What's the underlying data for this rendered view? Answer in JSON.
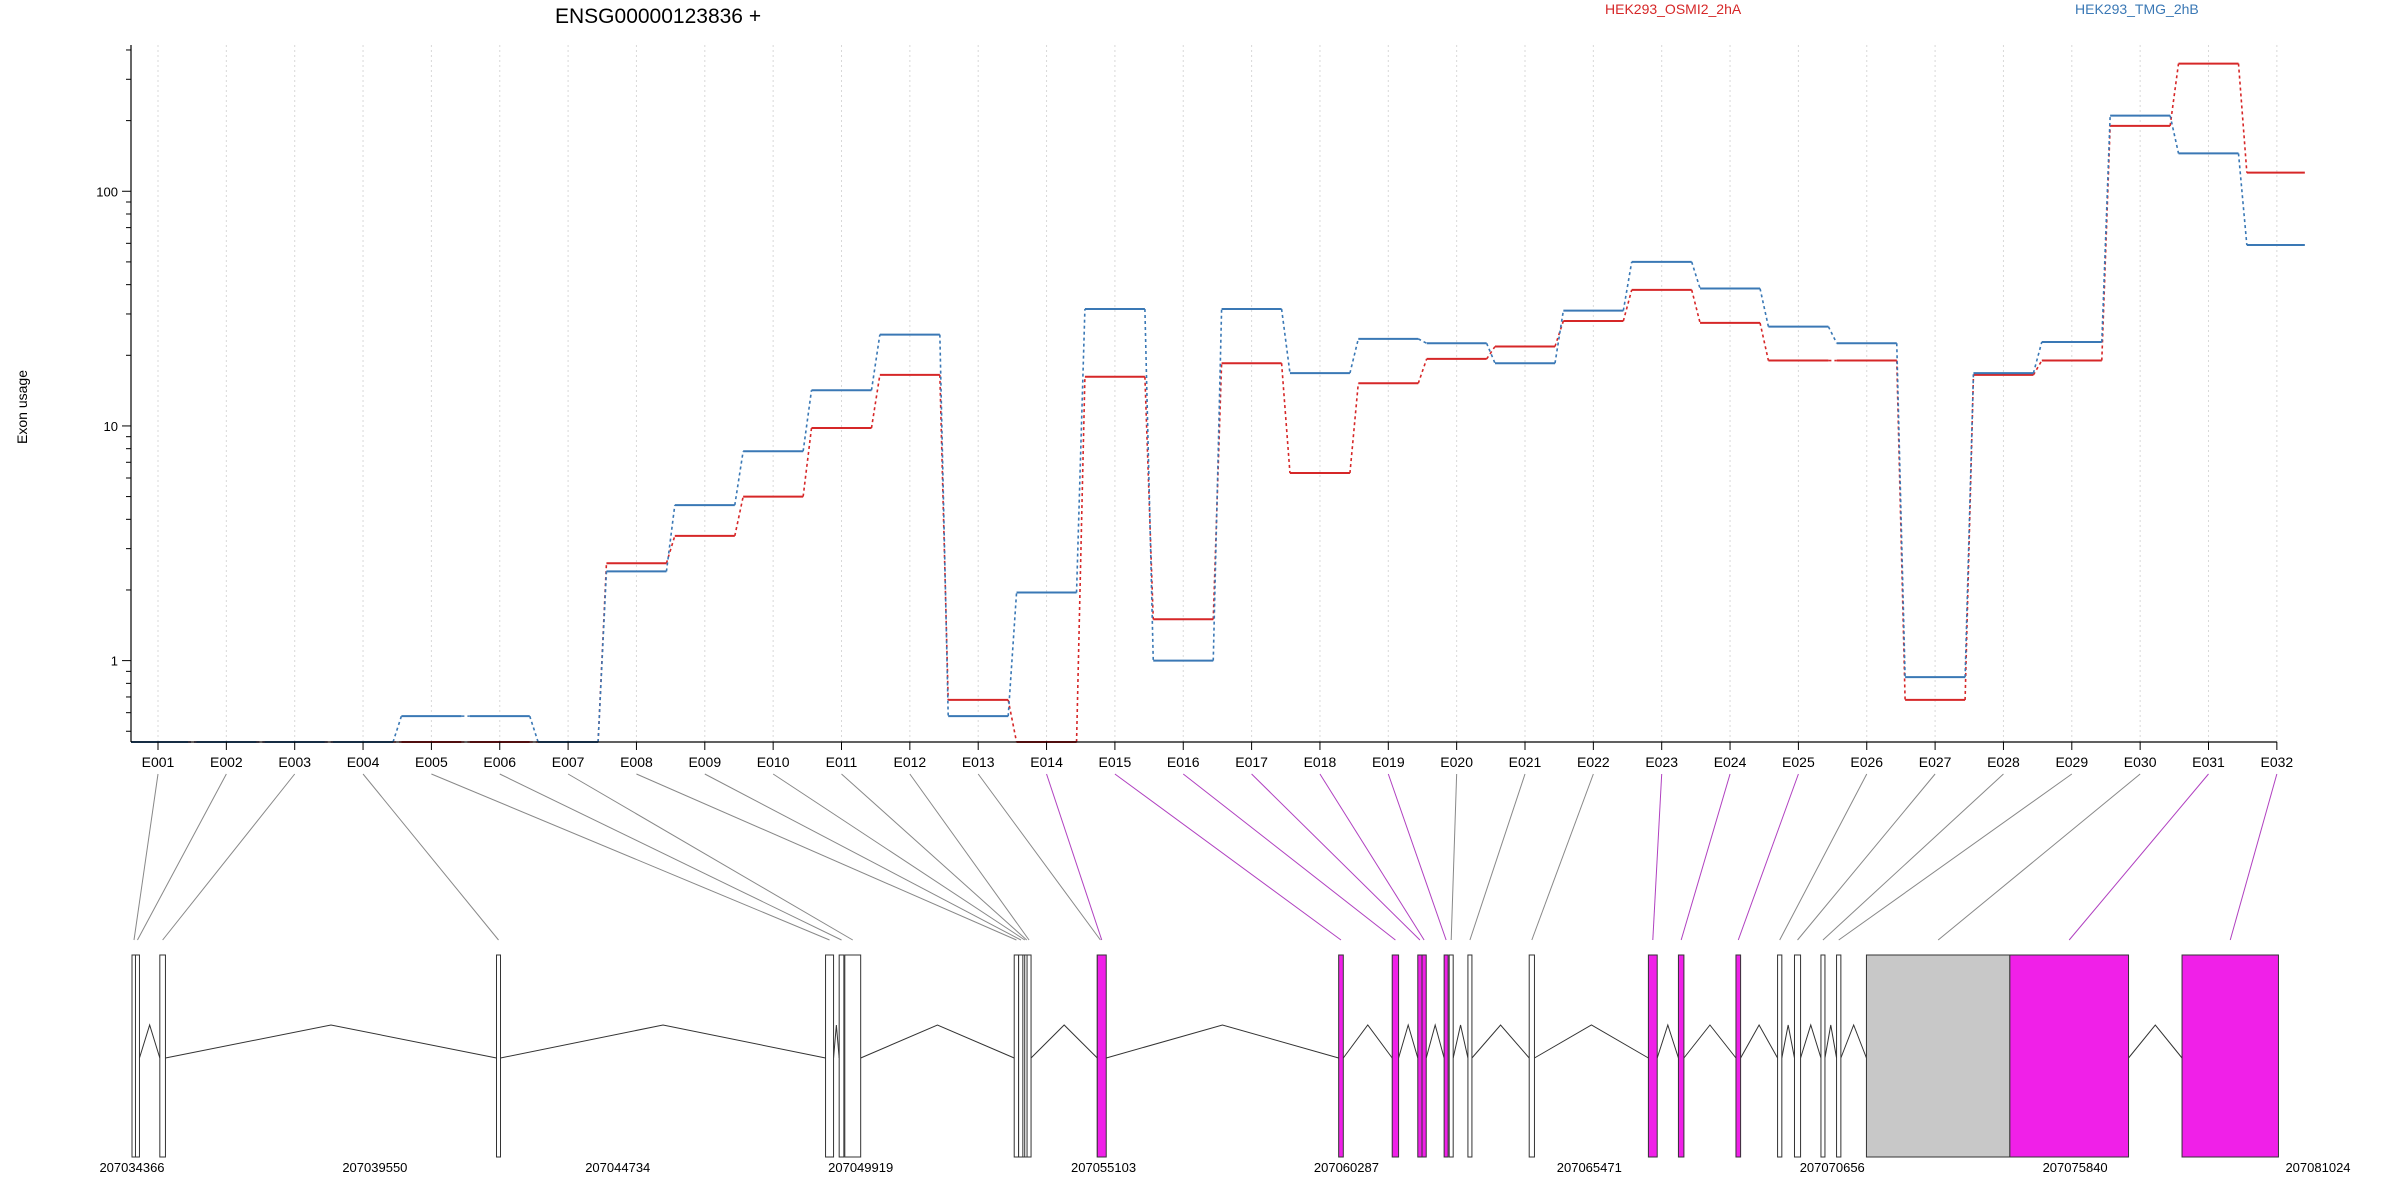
{
  "chart_data": {
    "type": "line",
    "title": "ENSG00000123836 +",
    "ylabel": "Exon usage",
    "yscale": "log",
    "ylim": [
      0.45,
      420
    ],
    "y_ticks": [
      1,
      10,
      100
    ],
    "y_tick_labels": [
      "1",
      "10",
      "100"
    ],
    "grid": "vertical dotted lines at exons",
    "legend_position": "top",
    "categories": [
      "E001",
      "E002",
      "E003",
      "E004",
      "E005",
      "E006",
      "E007",
      "E008",
      "E009",
      "E010",
      "E011",
      "E012",
      "E013",
      "E014",
      "E015",
      "E016",
      "E017",
      "E018",
      "E019",
      "E020",
      "E021",
      "E022",
      "E023",
      "E024",
      "E025",
      "E026",
      "E027",
      "E028",
      "E029",
      "E030",
      "E031",
      "E032"
    ],
    "series": [
      {
        "name": "HEK293_OSMI2_2hA",
        "color": "#d62728",
        "values": [
          0.45,
          0.45,
          0.45,
          0.45,
          0.45,
          0.45,
          0.45,
          2.6,
          3.4,
          5.0,
          9.8,
          16.5,
          0.68,
          0.45,
          16.2,
          1.5,
          18.5,
          6.3,
          15.2,
          19.3,
          21.8,
          28.0,
          38.0,
          27.5,
          19.0,
          19.0,
          0.68,
          16.5,
          19.0,
          190,
          350,
          120
        ]
      },
      {
        "name": "HEK293_TMG_2hB",
        "color": "#3a78b5",
        "values": [
          0.45,
          0.45,
          0.45,
          0.45,
          0.58,
          0.58,
          0.45,
          2.4,
          4.6,
          7.8,
          14.2,
          24.5,
          0.58,
          1.95,
          31.5,
          1.0,
          31.5,
          16.8,
          23.5,
          22.5,
          18.5,
          31.0,
          50.0,
          38.5,
          26.5,
          22.5,
          0.85,
          16.8,
          22.8,
          210,
          145,
          59
        ]
      }
    ],
    "genomic_axis": {
      "tick_labels": [
        "207034366",
        "207039550",
        "207044734",
        "207049919",
        "207055103",
        "207060287",
        "207065471",
        "207070656",
        "207075840",
        "207081024"
      ],
      "tick_values": [
        207034366,
        207039550,
        207044734,
        207049919,
        207055103,
        207060287,
        207065471,
        207070656,
        207075840,
        207081024
      ]
    },
    "exons": [
      {
        "id": "E001",
        "start": 207034366,
        "end": 207034440,
        "highlight": false
      },
      {
        "id": "E002",
        "start": 207034440,
        "end": 207034500,
        "highlight": false
      },
      {
        "id": "E003",
        "start": 207034960,
        "end": 207035080,
        "highlight": false
      },
      {
        "id": "E004",
        "start": 207042146,
        "end": 207042200,
        "highlight": false
      },
      {
        "id": "E005",
        "start": 207049169,
        "end": 207049340,
        "highlight": false
      },
      {
        "id": "E006",
        "start": 207049460,
        "end": 207049560,
        "highlight": false
      },
      {
        "id": "E007",
        "start": 207049580,
        "end": 207049919,
        "highlight": false
      },
      {
        "id": "E008",
        "start": 207053196,
        "end": 207053290,
        "highlight": false
      },
      {
        "id": "E009",
        "start": 207053290,
        "end": 207053390,
        "highlight": false
      },
      {
        "id": "E010",
        "start": 207053380,
        "end": 207053420,
        "highlight": false
      },
      {
        "id": "E011",
        "start": 207053420,
        "end": 207053450,
        "highlight": false
      },
      {
        "id": "E012",
        "start": 207053470,
        "end": 207053530,
        "highlight": false
      },
      {
        "id": "E013",
        "start": 207054969,
        "end": 207055103,
        "highlight": false
      },
      {
        "id": "E014",
        "start": 207054969,
        "end": 207055160,
        "highlight": true
      },
      {
        "id": "E015",
        "start": 207060121,
        "end": 207060220,
        "highlight": true
      },
      {
        "id": "E016",
        "start": 207061264,
        "end": 207061400,
        "highlight": true
      },
      {
        "id": "E017",
        "start": 207061810,
        "end": 207061900,
        "highlight": true
      },
      {
        "id": "E018",
        "start": 207061900,
        "end": 207061990,
        "highlight": true
      },
      {
        "id": "E019",
        "start": 207062372,
        "end": 207062450,
        "highlight": true
      },
      {
        "id": "E020",
        "start": 207062480,
        "end": 207062520,
        "highlight": false
      },
      {
        "id": "E021",
        "start": 207062880,
        "end": 207062960,
        "highlight": false
      },
      {
        "id": "E022",
        "start": 207064188,
        "end": 207064300,
        "highlight": false
      },
      {
        "id": "E023",
        "start": 207066732,
        "end": 207066920,
        "highlight": true
      },
      {
        "id": "E024",
        "start": 207067373,
        "end": 207067490,
        "highlight": true
      },
      {
        "id": "E025",
        "start": 207068601,
        "end": 207068700,
        "highlight": true
      },
      {
        "id": "E026",
        "start": 207069489,
        "end": 207069580,
        "highlight": false
      },
      {
        "id": "E027",
        "start": 207069850,
        "end": 207069980,
        "highlight": false
      },
      {
        "id": "E028",
        "start": 207070415,
        "end": 207070500,
        "highlight": false
      },
      {
        "id": "E029",
        "start": 207070748,
        "end": 207070840,
        "highlight": false
      },
      {
        "id": "E030",
        "start": 207071386,
        "end": 207074447,
        "highlight": false
      },
      {
        "id": "E031",
        "start": 207074447,
        "end": 207076980,
        "highlight": true
      },
      {
        "id": "E032",
        "start": 207078122,
        "end": 207080180,
        "highlight": true
      }
    ],
    "highlight_color": "#f020e8",
    "neutral_exon_color": "#ffffff",
    "utr_exon_color": "#c8c8c8",
    "utr_exons": [
      "E030"
    ]
  }
}
